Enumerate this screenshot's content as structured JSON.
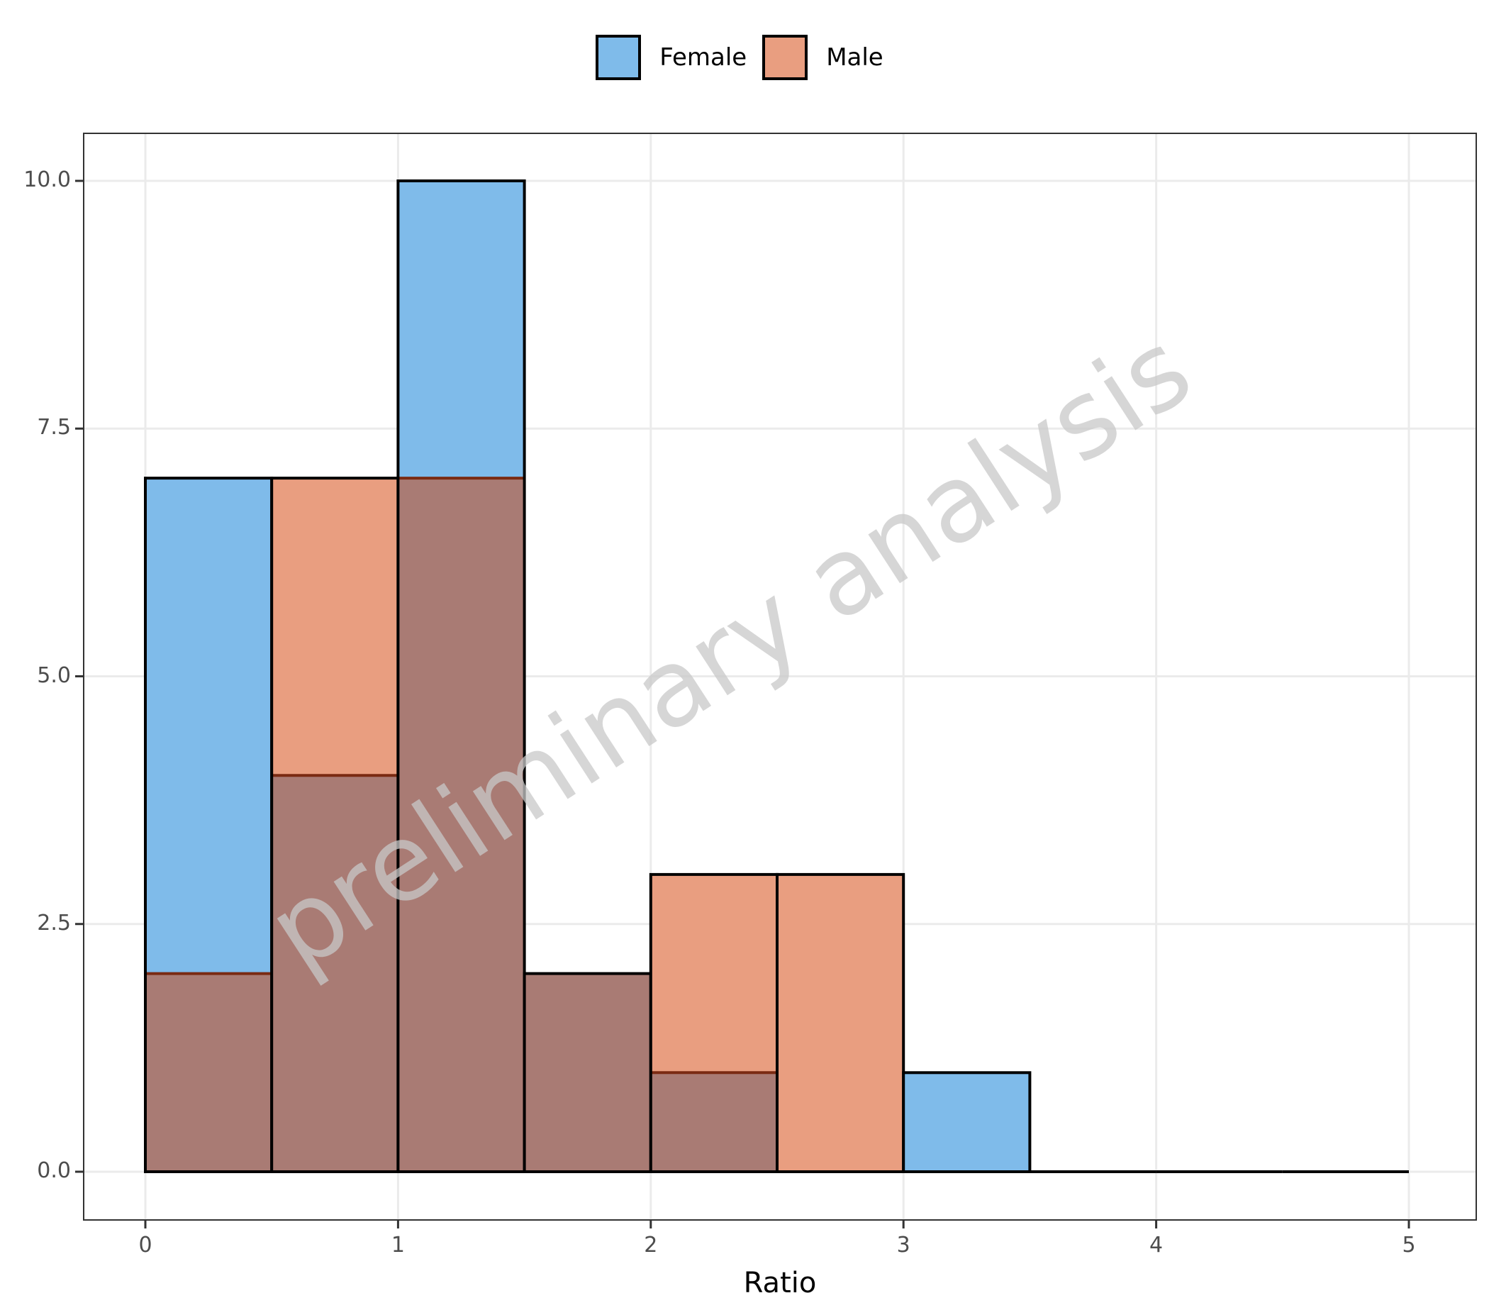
{
  "legend": {
    "items": [
      {
        "label": "Female",
        "color": "#5DADE2"
      },
      {
        "label": "Male",
        "color": "#E59066"
      }
    ]
  },
  "axes": {
    "x_title": "Ratio",
    "x_ticks": [
      "0",
      "1",
      "2",
      "3",
      "4",
      "5"
    ],
    "y_ticks": [
      "0.0",
      "2.5",
      "5.0",
      "7.5",
      "10.0"
    ]
  },
  "watermark": "preliminary analysis",
  "colors": {
    "female_fill": "#7FBBEA",
    "male_fill": "#E99E80",
    "overlap_fill": "#A97B74",
    "grid": "#EBEBEB",
    "panel_border": "#333333"
  },
  "chart_data": {
    "type": "histogram",
    "title": "",
    "xlabel": "Ratio",
    "ylabel": "",
    "bin_width": 0.5,
    "bin_edges": [
      0,
      0.5,
      1,
      1.5,
      2,
      2.5,
      3,
      3.5,
      4,
      4.5,
      5
    ],
    "series": [
      {
        "name": "Female",
        "values": [
          7,
          4,
          10,
          2,
          1,
          0,
          1,
          0,
          0,
          0
        ]
      },
      {
        "name": "Male",
        "values": [
          2,
          7,
          7,
          2,
          3,
          3,
          0,
          0,
          0,
          0
        ]
      }
    ],
    "xlim": [
      -0.25,
      5.25
    ],
    "ylim": [
      -0.5,
      10.5
    ],
    "x_ticks": [
      0,
      1,
      2,
      3,
      4,
      5
    ],
    "y_ticks": [
      0,
      2.5,
      5,
      7.5,
      10
    ],
    "grid": true,
    "legend_position": "top",
    "overlay": "identity, semi-transparent",
    "annotations": [
      "preliminary analysis (diagonal watermark)"
    ]
  }
}
